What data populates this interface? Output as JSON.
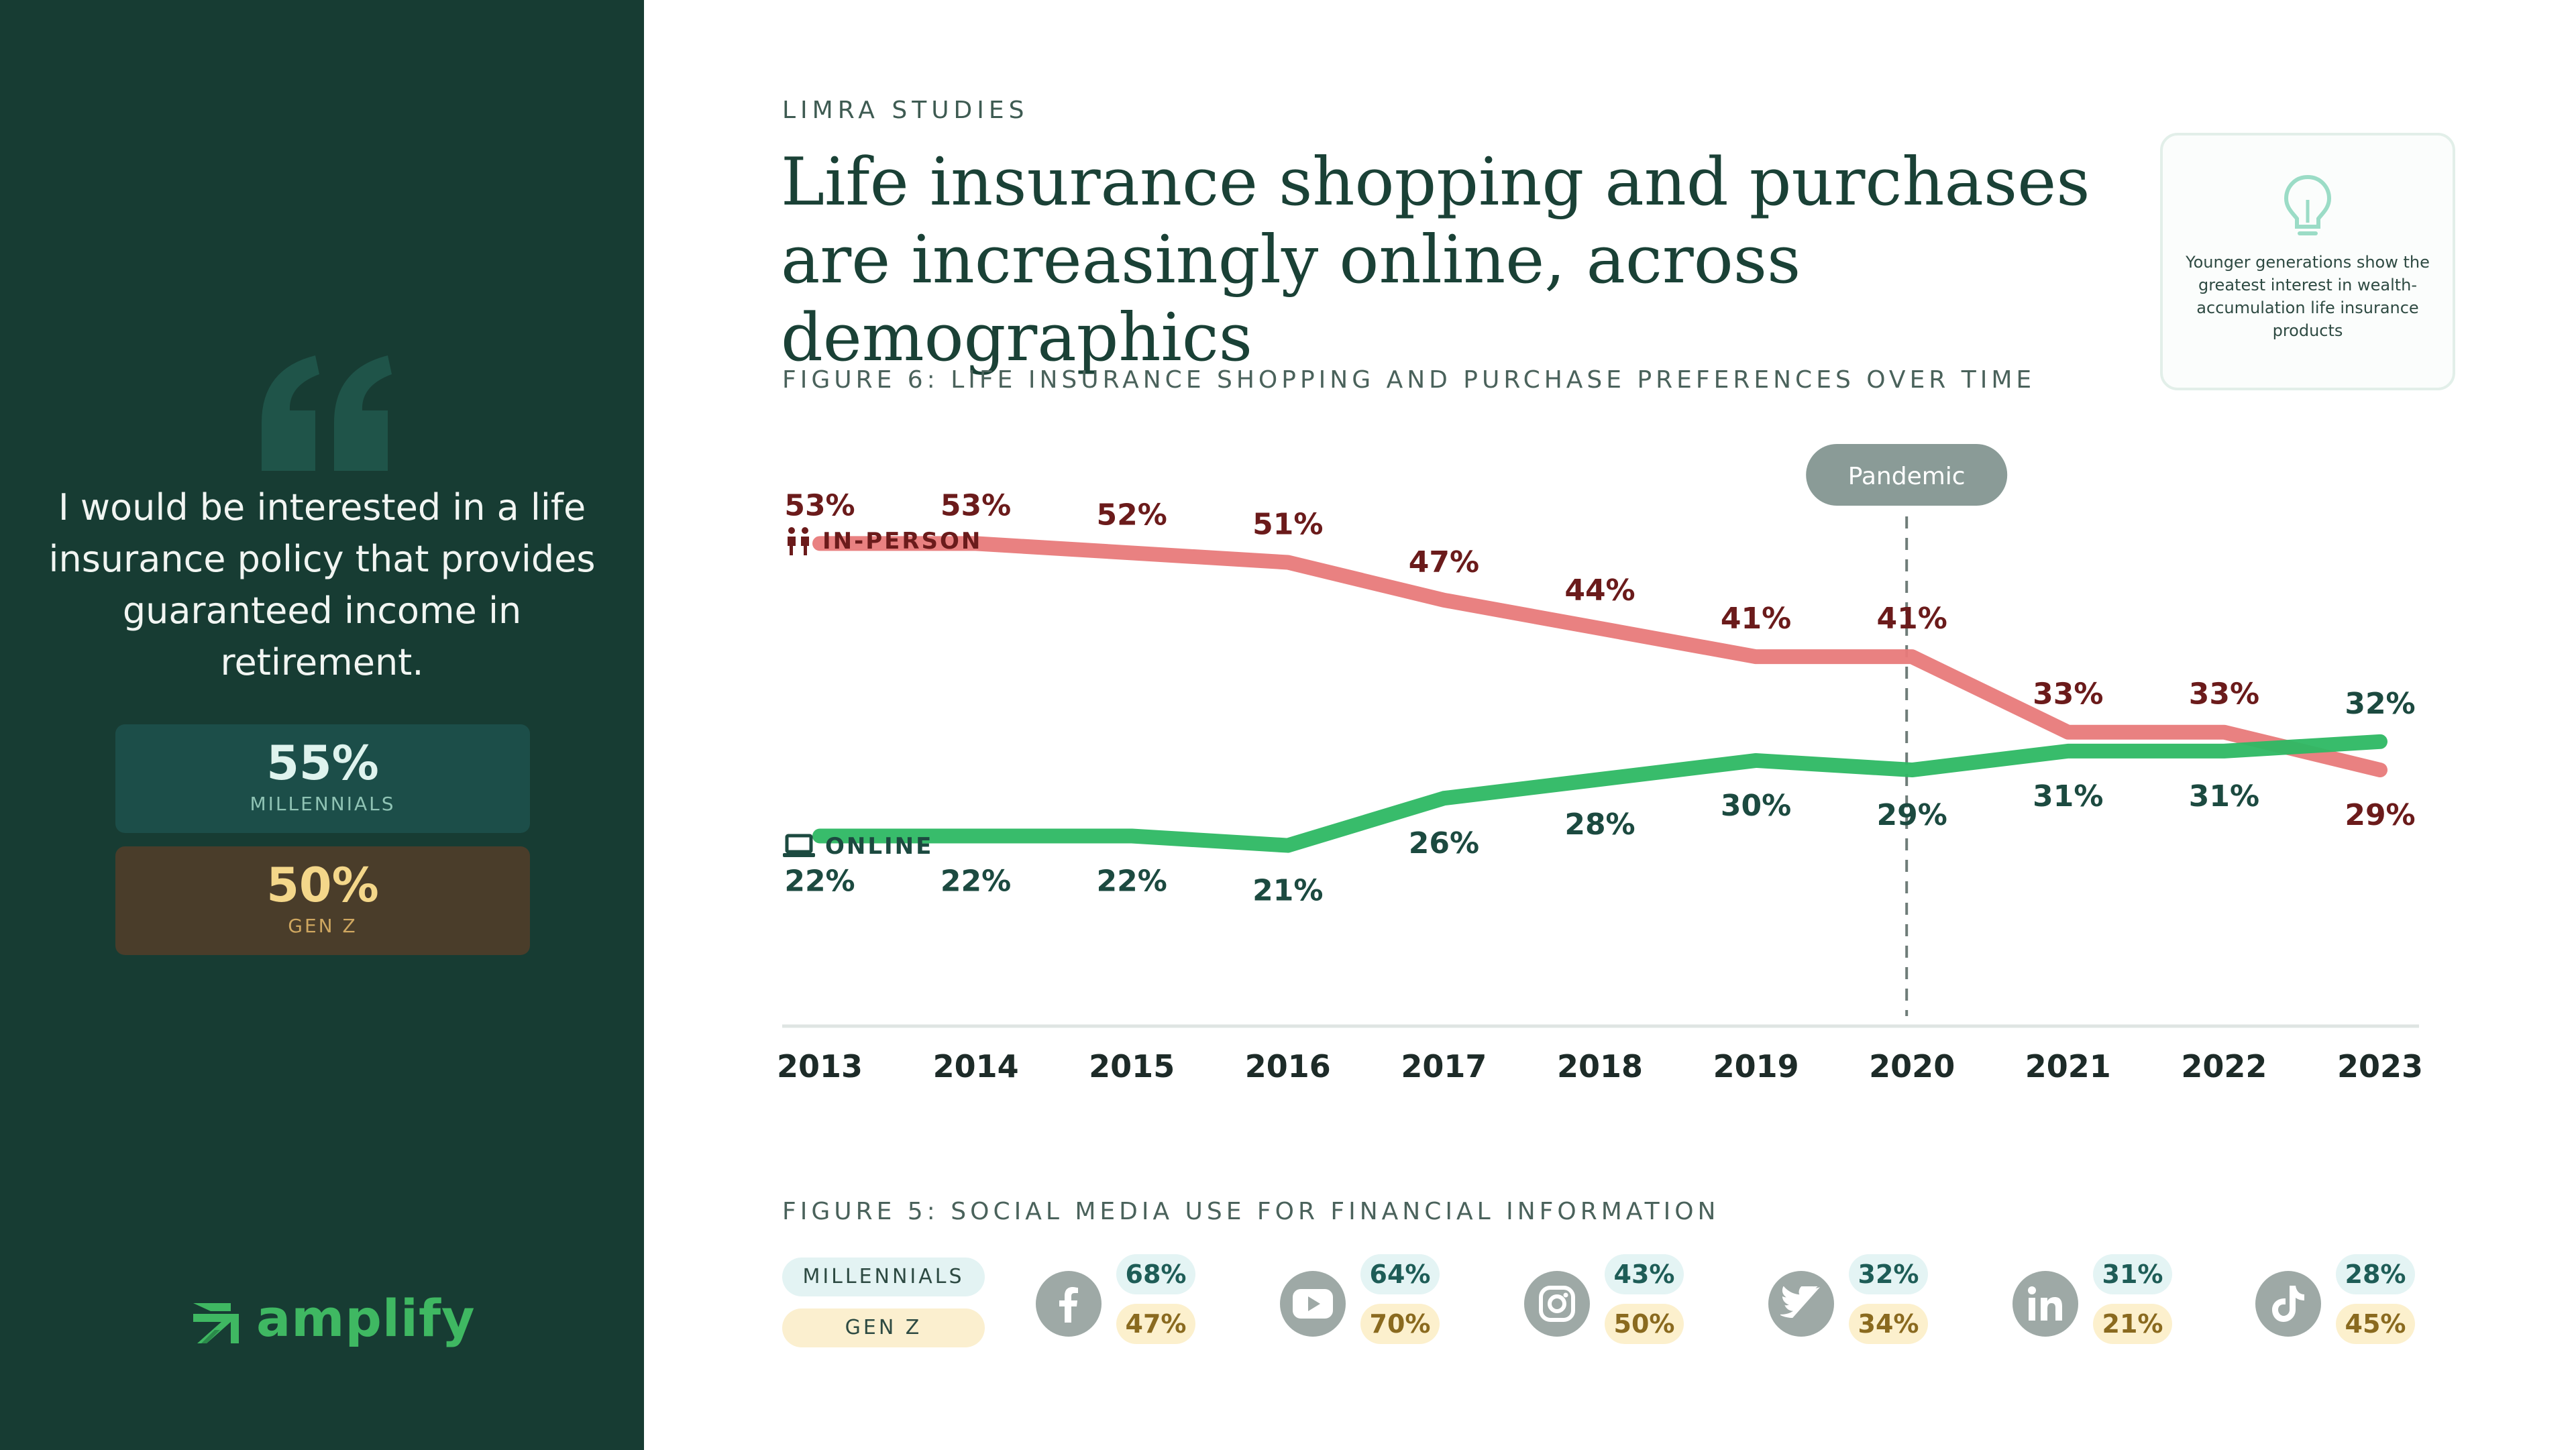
{
  "sidebar": {
    "quote": "I would be interested in a life insurance policy that provides guaranteed income in retirement.",
    "stats": [
      {
        "value": "55%",
        "label": "MILLENNIALS"
      },
      {
        "value": "50%",
        "label": "GEN Z"
      }
    ],
    "logo": "amplify"
  },
  "header": {
    "eyebrow": "LIMRA STUDIES",
    "headline": "Life insurance shopping and purchases are increasingly online, across demographics"
  },
  "tip": {
    "icon": "lightbulb-icon",
    "text": "Younger generations show the greatest interest in wealth-accumulation life insurance products"
  },
  "chart_data": [
    {
      "type": "line",
      "title": "FIGURE 6: LIFE INSURANCE SHOPPING AND PURCHASE PREFERENCES OVER TIME",
      "categories": [
        "2013",
        "2014",
        "2015",
        "2016",
        "2017",
        "2018",
        "2019",
        "2020",
        "2021",
        "2022",
        "2023"
      ],
      "series": [
        {
          "name": "IN-PERSON",
          "color": "#e87a7a",
          "label_color": "#6b1b1b",
          "values": [
            53,
            53,
            52,
            51,
            47,
            44,
            41,
            41,
            33,
            33,
            29
          ],
          "labels": [
            "53%",
            "53%",
            "52%",
            "51%",
            "47%",
            "44%",
            "41%",
            "41%",
            "33%",
            "33%",
            "29%"
          ]
        },
        {
          "name": "ONLINE",
          "color": "#2db863",
          "label_color": "#1c4a40",
          "values": [
            22,
            22,
            22,
            21,
            26,
            28,
            30,
            29,
            31,
            31,
            32
          ],
          "labels": [
            "22%",
            "22%",
            "22%",
            "21%",
            "26%",
            "28%",
            "30%",
            "29%",
            "31%",
            "31%",
            "32%"
          ]
        }
      ],
      "annotation": {
        "label": "Pandemic",
        "at": "2020"
      },
      "ylim": [
        15,
        58
      ]
    },
    {
      "type": "table",
      "title": "FIGURE 5: SOCIAL MEDIA USE FOR FINANCIAL INFORMATION",
      "row_labels": [
        "MILLENNIALS",
        "GEN Z"
      ],
      "platforms": [
        {
          "name": "facebook-icon",
          "millennials": "68%",
          "genz": "47%"
        },
        {
          "name": "youtube-icon",
          "millennials": "64%",
          "genz": "70%"
        },
        {
          "name": "instagram-icon",
          "millennials": "43%",
          "genz": "50%"
        },
        {
          "name": "twitter-icon",
          "millennials": "32%",
          "genz": "34%"
        },
        {
          "name": "linkedin-icon",
          "millennials": "31%",
          "genz": "21%"
        },
        {
          "name": "tiktok-icon",
          "millennials": "28%",
          "genz": "45%"
        }
      ]
    }
  ]
}
